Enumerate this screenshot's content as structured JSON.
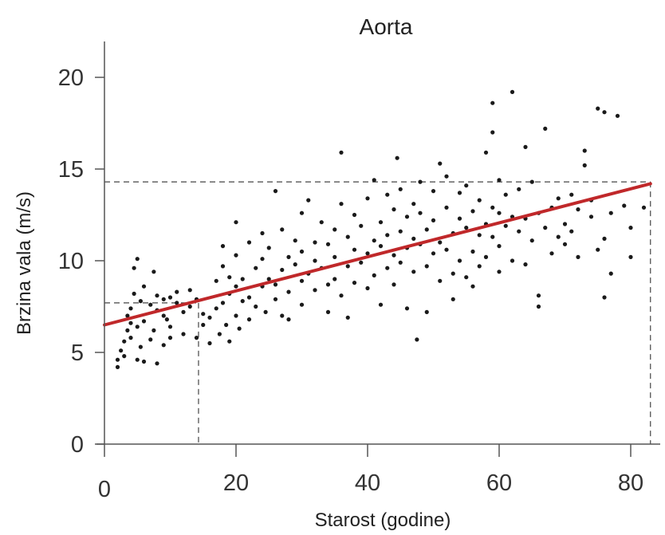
{
  "chart_data": {
    "type": "scatter",
    "title": "Aorta",
    "xlabel": "Starost (godine)",
    "ylabel": "Brzina vala (m/s)",
    "xlim": [
      0,
      84
    ],
    "ylim": [
      0,
      20
    ],
    "xticks": [
      "0",
      "20",
      "40",
      "60",
      "80"
    ],
    "yticks": [
      "0",
      "5",
      "10",
      "15",
      "20"
    ],
    "grid": false,
    "colors": {
      "points": "#1a1a1a",
      "fit_line": "#c0282a",
      "guide": "#444444"
    },
    "fit_line": {
      "x": [
        0,
        83
      ],
      "y": [
        6.5,
        14.2
      ]
    },
    "guides": [
      {
        "x": 14.3,
        "y": 7.7
      },
      {
        "x": 83,
        "y": 14.3
      }
    ],
    "points": [
      [
        2,
        4.2
      ],
      [
        2,
        4.6
      ],
      [
        2.5,
        5.1
      ],
      [
        3,
        4.8
      ],
      [
        3,
        5.6
      ],
      [
        3.5,
        6.2
      ],
      [
        3.5,
        7.0
      ],
      [
        4,
        5.8
      ],
      [
        4,
        6.6
      ],
      [
        4,
        7.4
      ],
      [
        4.5,
        8.2
      ],
      [
        4.5,
        9.6
      ],
      [
        5,
        10.1
      ],
      [
        5,
        6.4
      ],
      [
        5,
        4.6
      ],
      [
        5.5,
        7.8
      ],
      [
        5.5,
        5.3
      ],
      [
        6,
        6.7
      ],
      [
        6,
        8.6
      ],
      [
        6,
        4.5
      ],
      [
        7,
        7.6
      ],
      [
        7,
        5.7
      ],
      [
        7.5,
        9.4
      ],
      [
        7.5,
        6.2
      ],
      [
        8,
        4.4
      ],
      [
        8,
        7.3
      ],
      [
        8,
        8.1
      ],
      [
        9,
        5.4
      ],
      [
        9,
        7.0
      ],
      [
        9,
        7.9
      ],
      [
        9.5,
        6.8
      ],
      [
        10,
        5.8
      ],
      [
        10,
        6.4
      ],
      [
        10,
        8.0
      ],
      [
        11,
        7.7
      ],
      [
        11,
        8.3
      ],
      [
        12,
        7.2
      ],
      [
        12,
        6.0
      ],
      [
        13,
        8.4
      ],
      [
        13,
        7.5
      ],
      [
        14,
        5.8
      ],
      [
        14,
        7.9
      ],
      [
        15,
        7.1
      ],
      [
        15,
        6.5
      ],
      [
        16,
        5.5
      ],
      [
        16,
        6.9
      ],
      [
        17,
        7.4
      ],
      [
        17,
        8.9
      ],
      [
        17.5,
        6.0
      ],
      [
        18,
        9.7
      ],
      [
        18,
        7.7
      ],
      [
        18,
        10.8
      ],
      [
        18.5,
        6.5
      ],
      [
        19,
        9.1
      ],
      [
        19,
        8.2
      ],
      [
        19,
        5.6
      ],
      [
        20,
        7.0
      ],
      [
        20,
        8.6
      ],
      [
        20,
        10.3
      ],
      [
        20,
        12.1
      ],
      [
        20.5,
        6.3
      ],
      [
        21,
        7.8
      ],
      [
        21,
        9.0
      ],
      [
        22,
        8.0
      ],
      [
        22,
        11.0
      ],
      [
        22,
        6.8
      ],
      [
        23,
        9.6
      ],
      [
        23,
        7.5
      ],
      [
        24,
        8.6
      ],
      [
        24,
        10.1
      ],
      [
        24,
        11.5
      ],
      [
        24.5,
        7.2
      ],
      [
        25,
        9.0
      ],
      [
        25,
        10.7
      ],
      [
        26,
        7.9
      ],
      [
        26,
        8.7
      ],
      [
        26,
        13.8
      ],
      [
        27,
        9.5
      ],
      [
        27,
        11.7
      ],
      [
        27,
        7.0
      ],
      [
        28,
        10.2
      ],
      [
        28,
        8.3
      ],
      [
        28,
        6.8
      ],
      [
        29,
        9.8
      ],
      [
        29,
        11.1
      ],
      [
        30,
        8.9
      ],
      [
        30,
        10.5
      ],
      [
        30,
        12.6
      ],
      [
        30,
        7.6
      ],
      [
        31,
        9.3
      ],
      [
        31,
        13.3
      ],
      [
        32,
        10.0
      ],
      [
        32,
        11.0
      ],
      [
        32,
        8.4
      ],
      [
        33,
        9.6
      ],
      [
        33,
        12.1
      ],
      [
        34,
        10.9
      ],
      [
        34,
        8.7
      ],
      [
        34,
        7.2
      ],
      [
        35,
        10.2
      ],
      [
        35,
        11.7
      ],
      [
        35,
        9.0
      ],
      [
        36,
        13.1
      ],
      [
        36,
        15.9
      ],
      [
        36,
        8.1
      ],
      [
        37,
        9.7
      ],
      [
        37,
        11.3
      ],
      [
        37,
        6.9
      ],
      [
        38,
        10.6
      ],
      [
        38,
        12.5
      ],
      [
        38,
        8.8
      ],
      [
        39,
        9.9
      ],
      [
        39,
        11.9
      ],
      [
        40,
        10.4
      ],
      [
        40,
        8.5
      ],
      [
        40,
        13.4
      ],
      [
        41,
        11.1
      ],
      [
        41,
        9.2
      ],
      [
        41,
        14.4
      ],
      [
        42,
        10.8
      ],
      [
        42,
        12.1
      ],
      [
        42,
        7.6
      ],
      [
        43,
        9.6
      ],
      [
        43,
        11.4
      ],
      [
        43,
        13.6
      ],
      [
        44,
        10.3
      ],
      [
        44,
        12.8
      ],
      [
        44,
        8.7
      ],
      [
        44.5,
        15.6
      ],
      [
        45,
        11.6
      ],
      [
        45,
        9.9
      ],
      [
        45,
        13.9
      ],
      [
        46,
        10.7
      ],
      [
        46,
        12.4
      ],
      [
        46,
        7.4
      ],
      [
        47,
        11.2
      ],
      [
        47,
        13.1
      ],
      [
        47,
        9.4
      ],
      [
        47.5,
        5.7
      ],
      [
        48,
        10.9
      ],
      [
        48,
        12.6
      ],
      [
        48,
        14.3
      ],
      [
        49,
        11.7
      ],
      [
        49,
        9.7
      ],
      [
        49,
        7.2
      ],
      [
        50,
        10.4
      ],
      [
        50,
        12.2
      ],
      [
        50,
        13.8
      ],
      [
        51,
        11.0
      ],
      [
        51,
        8.9
      ],
      [
        51,
        15.3
      ],
      [
        52,
        12.9
      ],
      [
        52,
        10.6
      ],
      [
        52,
        14.6
      ],
      [
        53,
        11.5
      ],
      [
        53,
        9.3
      ],
      [
        53,
        7.9
      ],
      [
        54,
        12.3
      ],
      [
        54,
        13.7
      ],
      [
        54,
        10.0
      ],
      [
        55,
        11.8
      ],
      [
        55,
        9.1
      ],
      [
        55,
        14.1
      ],
      [
        56,
        12.7
      ],
      [
        56,
        10.5
      ],
      [
        56,
        8.6
      ],
      [
        57,
        11.4
      ],
      [
        57,
        13.3
      ],
      [
        57,
        9.7
      ],
      [
        58,
        12.0
      ],
      [
        58,
        10.2
      ],
      [
        58,
        15.9
      ],
      [
        59,
        12.9
      ],
      [
        59,
        11.3
      ],
      [
        59,
        17.0
      ],
      [
        59,
        18.6
      ],
      [
        60,
        12.6
      ],
      [
        60,
        10.8
      ],
      [
        60,
        14.4
      ],
      [
        60,
        9.4
      ],
      [
        61,
        11.9
      ],
      [
        61,
        13.6
      ],
      [
        62,
        12.4
      ],
      [
        62,
        10.0
      ],
      [
        62,
        19.2
      ],
      [
        63,
        11.6
      ],
      [
        63,
        13.9
      ],
      [
        64,
        12.3
      ],
      [
        64,
        9.8
      ],
      [
        64,
        16.2
      ],
      [
        65,
        11.1
      ],
      [
        65,
        14.3
      ],
      [
        66,
        12.6
      ],
      [
        66,
        8.1
      ],
      [
        66,
        7.5
      ],
      [
        67,
        11.8
      ],
      [
        67,
        17.2
      ],
      [
        68,
        12.9
      ],
      [
        68,
        10.4
      ],
      [
        69,
        11.3
      ],
      [
        69,
        13.4
      ],
      [
        70,
        12.0
      ],
      [
        70,
        10.9
      ],
      [
        71,
        13.6
      ],
      [
        71,
        11.6
      ],
      [
        72,
        12.8
      ],
      [
        72,
        10.2
      ],
      [
        73,
        15.2
      ],
      [
        73,
        16.0
      ],
      [
        74,
        12.4
      ],
      [
        74,
        13.3
      ],
      [
        75,
        18.3
      ],
      [
        75,
        10.6
      ],
      [
        76,
        18.1
      ],
      [
        76,
        11.2
      ],
      [
        76,
        8.0
      ],
      [
        77,
        12.6
      ],
      [
        77,
        9.3
      ],
      [
        78,
        17.9
      ],
      [
        79,
        13.0
      ],
      [
        80,
        11.8
      ],
      [
        80,
        10.2
      ],
      [
        82,
        12.9
      ]
    ]
  }
}
